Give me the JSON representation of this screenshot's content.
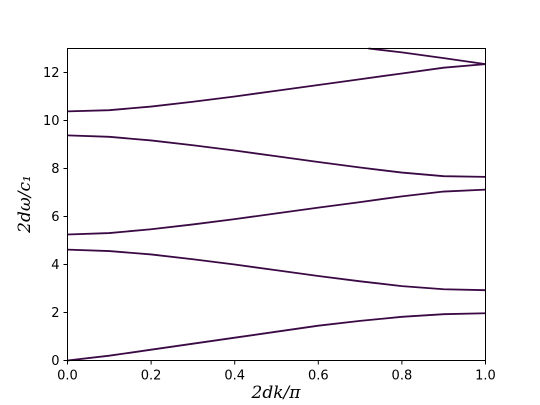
{
  "chart_data": {
    "type": "line",
    "title": "",
    "xlabel": "2dk/π",
    "ylabel": "2dω/c₁",
    "xlim": [
      0.0,
      1.0
    ],
    "ylim": [
      0,
      13
    ],
    "x_ticks": [
      0.0,
      0.2,
      0.4,
      0.6,
      0.8,
      1.0
    ],
    "x_tick_labels": [
      "0.0",
      "0.2",
      "0.4",
      "0.6",
      "0.8",
      "1.0"
    ],
    "y_ticks": [
      0,
      2,
      4,
      6,
      8,
      10,
      12
    ],
    "y_tick_labels": [
      "0",
      "2",
      "4",
      "6",
      "8",
      "10",
      "12"
    ],
    "grid": false,
    "legend": "none",
    "line_color": "#3b0a45",
    "x": [
      0.0,
      0.1,
      0.2,
      0.3,
      0.4,
      0.5,
      0.6,
      0.7,
      0.8,
      0.9,
      1.0
    ],
    "series": [
      {
        "values": [
          0.0,
          0.2,
          0.45,
          0.7,
          0.95,
          1.2,
          1.45,
          1.65,
          1.82,
          1.93,
          1.97
        ]
      },
      {
        "values": [
          4.62,
          4.56,
          4.42,
          4.22,
          4.0,
          3.76,
          3.52,
          3.3,
          3.1,
          2.97,
          2.93
        ]
      },
      {
        "values": [
          5.25,
          5.31,
          5.47,
          5.67,
          5.89,
          6.13,
          6.37,
          6.6,
          6.84,
          7.04,
          7.12
        ]
      },
      {
        "values": [
          9.38,
          9.32,
          9.17,
          8.97,
          8.75,
          8.51,
          8.27,
          8.04,
          7.83,
          7.68,
          7.65
        ]
      },
      {
        "values": [
          10.38,
          10.43,
          10.58,
          10.78,
          11.0,
          11.24,
          11.48,
          11.72,
          11.96,
          12.2,
          12.35
        ]
      },
      {
        "x": [
          0.72,
          0.8,
          0.9,
          1.0
        ],
        "values": [
          13.0,
          12.84,
          12.6,
          12.35
        ]
      }
    ]
  }
}
